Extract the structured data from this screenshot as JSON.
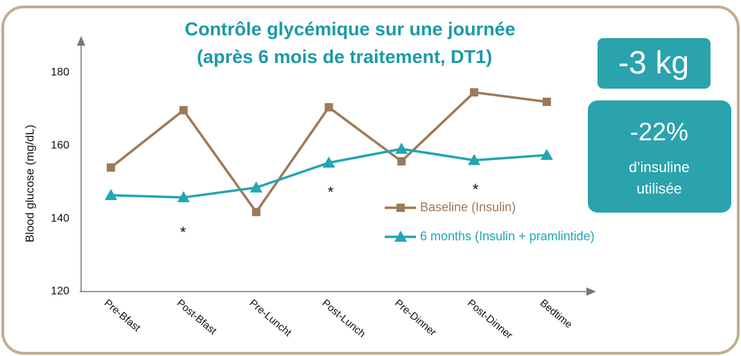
{
  "chart_data": {
    "type": "line",
    "title": [
      "Contrôle glycémique sur une journée",
      "(après 6 mois de traitement, DT1)"
    ],
    "y_label": "Blood glucose (mg/dL)",
    "categories": [
      "Pre-Bfast",
      "Post-Bfast",
      "Pre-Luncht",
      "Post-Lunch",
      "Pre-Dinner",
      "Post-Dinner",
      "Bedtime"
    ],
    "series": [
      {
        "name": "Baseline (Insulin)",
        "color": "#9c7a57",
        "marker": "square",
        "values": [
          154,
          169.7,
          141.8,
          170.5,
          155.7,
          174.6,
          172
        ]
      },
      {
        "name": "6 months (Insulin + pramlintide)",
        "color": "#22a6b3",
        "marker": "triangle",
        "values": [
          146.4,
          145.8,
          148.5,
          155.3,
          159.1,
          156,
          157.4
        ]
      }
    ],
    "ylim": [
      120,
      188
    ],
    "yticks": [
      120,
      140,
      160,
      180
    ],
    "grid": false,
    "annotations": [
      "*",
      "*",
      "*"
    ],
    "callouts": [
      {
        "text": "-3 kg"
      },
      {
        "title": "-22%",
        "lines": [
          "d’insuline",
          "utilisée"
        ]
      }
    ]
  }
}
